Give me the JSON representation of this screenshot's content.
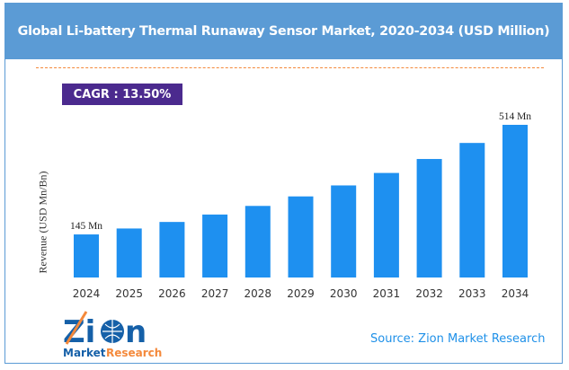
{
  "chart_data": {
    "type": "bar",
    "title": "Global Li-battery Thermal Runaway Sensor Market, 2020-2034 (USD Million)",
    "ylabel": "Revenue (USD Mn/Bn)",
    "xlabel": "",
    "categories": [
      "2024",
      "2025",
      "2026",
      "2027",
      "2028",
      "2029",
      "2030",
      "2031",
      "2032",
      "2033",
      "2034"
    ],
    "values": [
      145,
      165,
      187,
      212,
      241,
      273,
      310,
      352,
      399,
      453,
      514
    ],
    "data_labels": {
      "first": "145 Mn",
      "last": "514 Mn"
    },
    "ylim": [
      0,
      520
    ],
    "grid": false,
    "bar_color": "#1e90f0"
  },
  "cagr": "CAGR : 13.50%",
  "source": "Source: Zion Market Research",
  "logo": {
    "text_main": "Zion",
    "text_sub1": "Market",
    "text_sub2": "Research"
  },
  "colors": {
    "header": "#5b9bd5",
    "cagr_box": "#4b2a8e",
    "dash": "#f4893b",
    "source": "#1e90e8"
  }
}
